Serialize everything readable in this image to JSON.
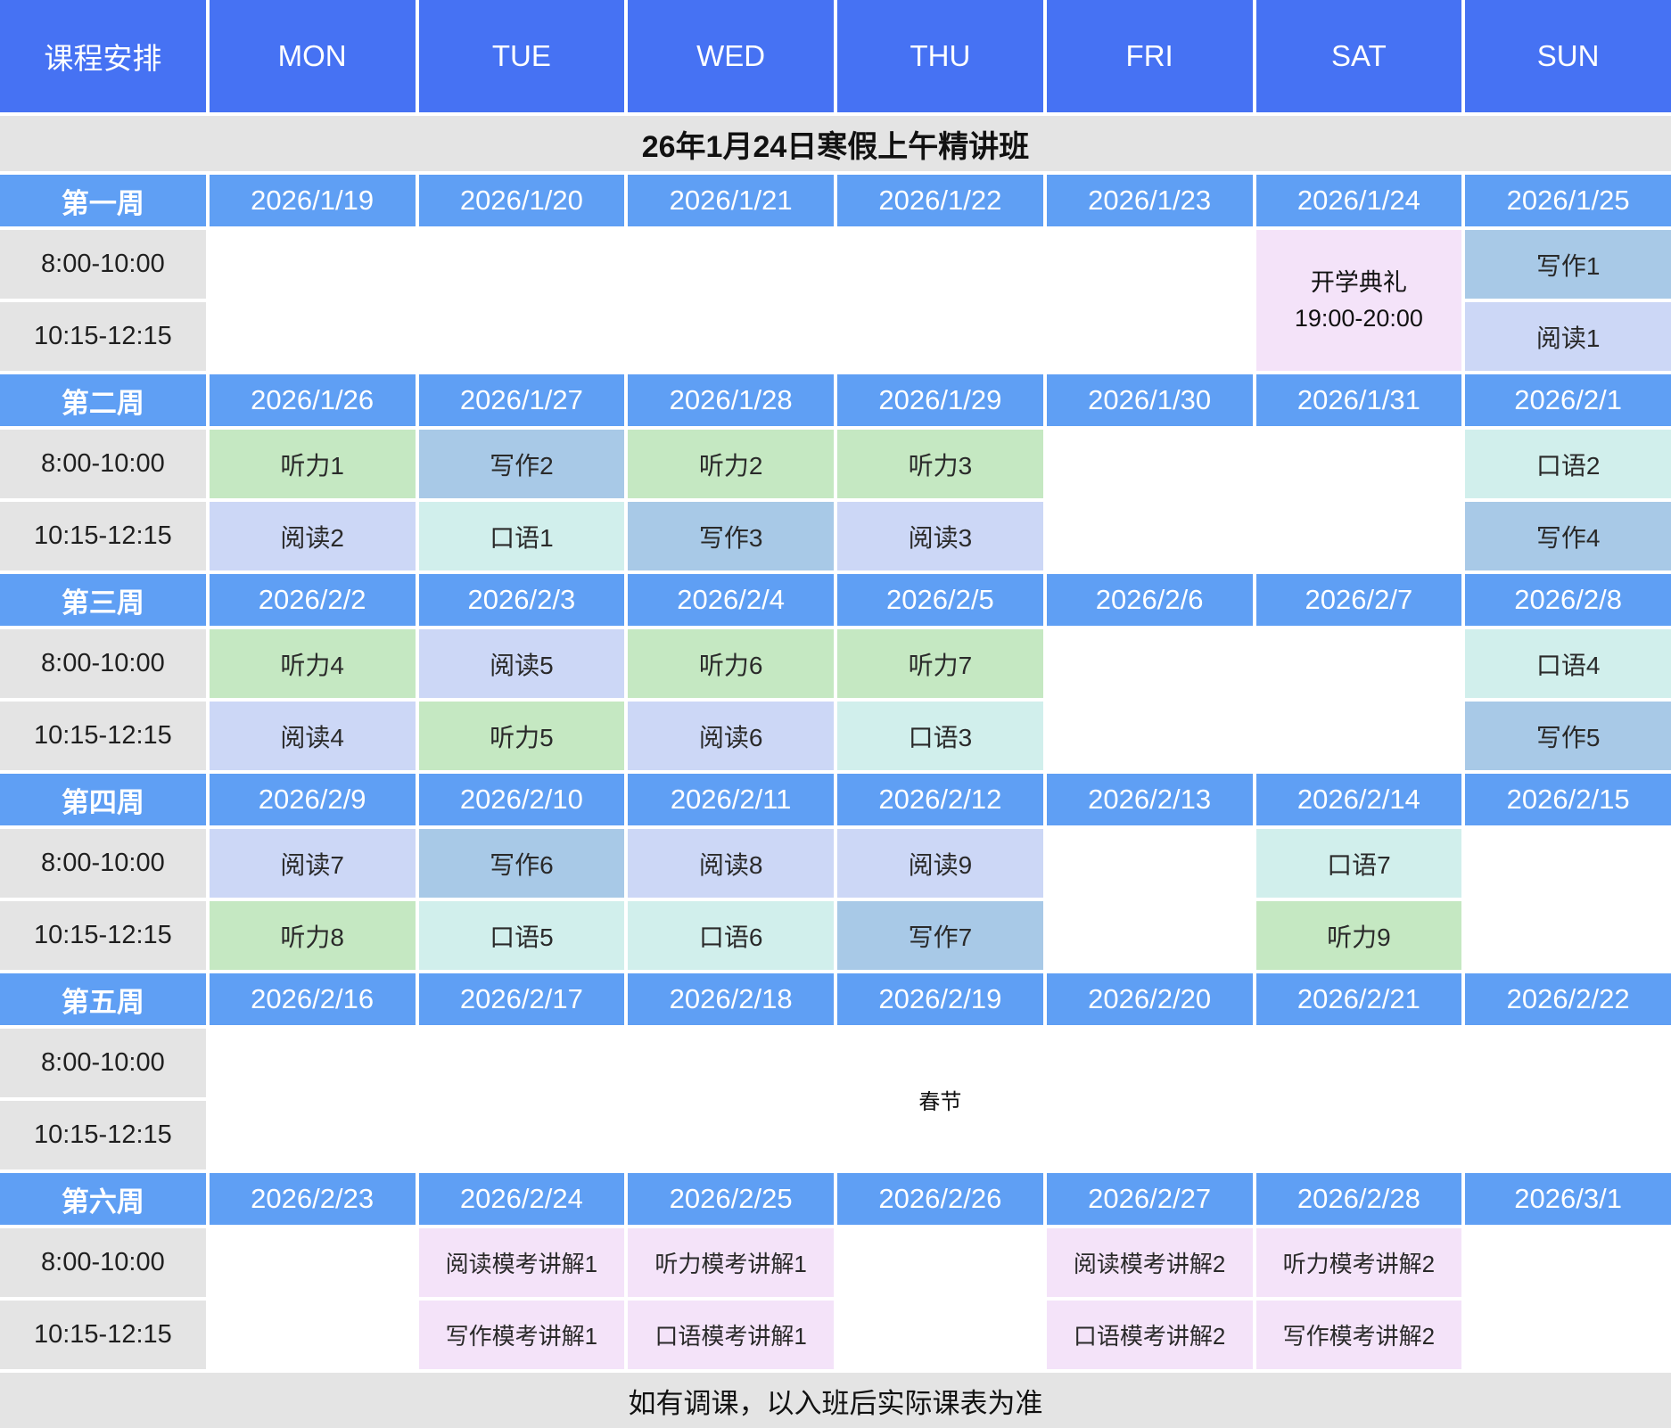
{
  "header": {
    "corner": "课程安排",
    "days": [
      "MON",
      "TUE",
      "WED",
      "THU",
      "FRI",
      "SAT",
      "SUN"
    ]
  },
  "title": "26年1月24日寒假上午精讲班",
  "time_slots": [
    "8:00-10:00",
    "10:15-12:15"
  ],
  "footer": "如有调课，以入班后实际课表为准",
  "colors": {
    "header_bg": "#4672f3",
    "week_bg": "#5f9ff4",
    "label_gray": "#e4e4e4",
    "listening": "#c5e8c2",
    "writing": "#a8c9e7",
    "reading": "#ccd7f6",
    "speaking": "#d1efec",
    "mock": "#f4e3f9",
    "ceremony": "#f4e3f9",
    "holiday": "#ffffff"
  },
  "weeks": [
    {
      "label": "第一周",
      "dates": [
        "2026/1/19",
        "2026/1/20",
        "2026/1/21",
        "2026/1/22",
        "2026/1/23",
        "2026/1/24",
        "2026/1/25"
      ],
      "rows": [
        [
          null,
          null,
          null,
          null,
          null,
          {
            "type": "ceremony",
            "lines": [
              "开学典礼",
              "19:00-20:00"
            ],
            "rowspan": 2
          },
          {
            "text": "写作1",
            "type": "writing"
          }
        ],
        [
          null,
          null,
          null,
          null,
          null,
          {
            "type": "skip"
          },
          {
            "text": "阅读1",
            "type": "reading"
          }
        ]
      ]
    },
    {
      "label": "第二周",
      "dates": [
        "2026/1/26",
        "2026/1/27",
        "2026/1/28",
        "2026/1/29",
        "2026/1/30",
        "2026/1/31",
        "2026/2/1"
      ],
      "rows": [
        [
          {
            "text": "听力1",
            "type": "listening"
          },
          {
            "text": "写作2",
            "type": "writing"
          },
          {
            "text": "听力2",
            "type": "listening"
          },
          {
            "text": "听力3",
            "type": "listening"
          },
          null,
          null,
          {
            "text": "口语2",
            "type": "speaking"
          }
        ],
        [
          {
            "text": "阅读2",
            "type": "reading"
          },
          {
            "text": "口语1",
            "type": "speaking"
          },
          {
            "text": "写作3",
            "type": "writing"
          },
          {
            "text": "阅读3",
            "type": "reading"
          },
          null,
          null,
          {
            "text": "写作4",
            "type": "writing"
          }
        ]
      ]
    },
    {
      "label": "第三周",
      "dates": [
        "2026/2/2",
        "2026/2/3",
        "2026/2/4",
        "2026/2/5",
        "2026/2/6",
        "2026/2/7",
        "2026/2/8"
      ],
      "rows": [
        [
          {
            "text": "听力4",
            "type": "listening"
          },
          {
            "text": "阅读5",
            "type": "reading"
          },
          {
            "text": "听力6",
            "type": "listening"
          },
          {
            "text": "听力7",
            "type": "listening"
          },
          null,
          null,
          {
            "text": "口语4",
            "type": "speaking"
          }
        ],
        [
          {
            "text": "阅读4",
            "type": "reading"
          },
          {
            "text": "听力5",
            "type": "listening"
          },
          {
            "text": "阅读6",
            "type": "reading"
          },
          {
            "text": "口语3",
            "type": "speaking"
          },
          null,
          null,
          {
            "text": "写作5",
            "type": "writing"
          }
        ]
      ]
    },
    {
      "label": "第四周",
      "dates": [
        "2026/2/9",
        "2026/2/10",
        "2026/2/11",
        "2026/2/12",
        "2026/2/13",
        "2026/2/14",
        "2026/2/15"
      ],
      "rows": [
        [
          {
            "text": "阅读7",
            "type": "reading"
          },
          {
            "text": "写作6",
            "type": "writing"
          },
          {
            "text": "阅读8",
            "type": "reading"
          },
          {
            "text": "阅读9",
            "type": "reading"
          },
          null,
          {
            "text": "口语7",
            "type": "speaking"
          },
          null
        ],
        [
          {
            "text": "听力8",
            "type": "listening"
          },
          {
            "text": "口语5",
            "type": "speaking"
          },
          {
            "text": "口语6",
            "type": "speaking"
          },
          {
            "text": "写作7",
            "type": "writing"
          },
          null,
          {
            "text": "听力9",
            "type": "listening"
          },
          null
        ]
      ]
    },
    {
      "label": "第五周",
      "dates": [
        "2026/2/16",
        "2026/2/17",
        "2026/2/18",
        "2026/2/19",
        "2026/2/20",
        "2026/2/21",
        "2026/2/22"
      ],
      "rows": [
        [
          {
            "type": "holiday",
            "text": "春节",
            "colspan": 7,
            "rowspan": 2
          },
          {
            "type": "skip"
          },
          {
            "type": "skip"
          },
          {
            "type": "skip"
          },
          {
            "type": "skip"
          },
          {
            "type": "skip"
          },
          {
            "type": "skip"
          }
        ],
        [
          {
            "type": "skip"
          },
          {
            "type": "skip"
          },
          {
            "type": "skip"
          },
          {
            "type": "skip"
          },
          {
            "type": "skip"
          },
          {
            "type": "skip"
          },
          {
            "type": "skip"
          }
        ]
      ]
    },
    {
      "label": "第六周",
      "dates": [
        "2026/2/23",
        "2026/2/24",
        "2026/2/25",
        "2026/2/26",
        "2026/2/27",
        "2026/2/28",
        "2026/3/1"
      ],
      "rows": [
        [
          null,
          {
            "text": "阅读模考讲解1",
            "type": "mock"
          },
          {
            "text": "听力模考讲解1",
            "type": "mock"
          },
          null,
          {
            "text": "阅读模考讲解2",
            "type": "mock"
          },
          {
            "text": "听力模考讲解2",
            "type": "mock"
          },
          null
        ],
        [
          null,
          {
            "text": "写作模考讲解1",
            "type": "mock"
          },
          {
            "text": "口语模考讲解1",
            "type": "mock"
          },
          null,
          {
            "text": "口语模考讲解2",
            "type": "mock"
          },
          {
            "text": "写作模考讲解2",
            "type": "mock"
          },
          null
        ]
      ]
    }
  ]
}
